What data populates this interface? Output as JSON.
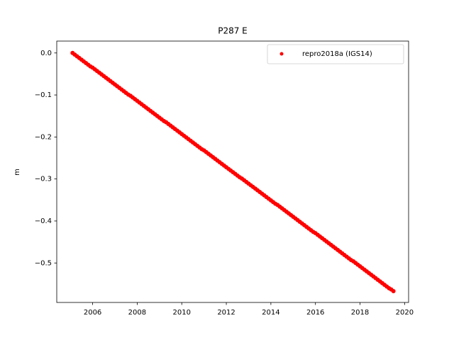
{
  "chart_data": {
    "type": "scatter",
    "title": "P287 E",
    "ylabel": "m",
    "xlim": [
      2004.39,
      2020.18
    ],
    "ylim": [
      -0.594,
      0.0283
    ],
    "xticks": [
      2006,
      2008,
      2010,
      2012,
      2014,
      2016,
      2018,
      2020
    ],
    "yticks": [
      {
        "value": 0,
        "label": "0.0"
      },
      {
        "value": -0.1,
        "label": "−0.1"
      },
      {
        "value": -0.2,
        "label": "−0.2"
      },
      {
        "value": -0.3,
        "label": "−0.3"
      },
      {
        "value": -0.4,
        "label": "−0.4"
      },
      {
        "value": -0.5,
        "label": "−0.5"
      }
    ],
    "grid": false,
    "legend": "upper right",
    "series": [
      {
        "name": "repro2018a (IGS14)",
        "color": "#ff0000",
        "x": [
          2005.1,
          2005.2,
          2005.3,
          2005.4,
          2005.5,
          2005.6,
          2005.7,
          2005.8,
          2005.9,
          2006.0,
          2006.1,
          2006.2,
          2006.3,
          2006.4,
          2006.5,
          2006.6,
          2006.7,
          2006.8,
          2006.9,
          2007.0,
          2007.1,
          2007.2,
          2007.3,
          2007.4,
          2007.5,
          2007.6,
          2007.7,
          2007.8,
          2007.9,
          2008.0,
          2008.1,
          2008.2,
          2008.3,
          2008.4,
          2008.5,
          2008.6,
          2008.7,
          2008.8,
          2008.9,
          2009.0,
          2009.1,
          2009.2,
          2009.3,
          2009.4,
          2009.5,
          2009.6,
          2009.7,
          2009.8,
          2009.9,
          2010.0,
          2010.1,
          2010.2,
          2010.3,
          2010.4,
          2010.5,
          2010.6,
          2010.7,
          2010.8,
          2010.9,
          2011.0,
          2011.1,
          2011.2,
          2011.3,
          2011.4,
          2011.5,
          2011.6,
          2011.7,
          2011.8,
          2011.9,
          2012.0,
          2012.1,
          2012.2,
          2012.3,
          2012.4,
          2012.5,
          2012.6,
          2012.7,
          2012.8,
          2012.9,
          2013.0,
          2013.1,
          2013.2,
          2013.3,
          2013.4,
          2013.5,
          2013.6,
          2013.7,
          2013.8,
          2013.9,
          2014.0,
          2014.1,
          2014.2,
          2014.3,
          2014.4,
          2014.5,
          2014.6,
          2014.7,
          2014.8,
          2014.9,
          2015.0,
          2015.1,
          2015.2,
          2015.3,
          2015.4,
          2015.5,
          2015.6,
          2015.7,
          2015.8,
          2015.9,
          2016.0,
          2016.1,
          2016.2,
          2016.3,
          2016.4,
          2016.5,
          2016.6,
          2016.7,
          2016.8,
          2016.9,
          2017.0,
          2017.1,
          2017.2,
          2017.3,
          2017.4,
          2017.5,
          2017.6,
          2017.7,
          2017.8,
          2017.9,
          2018.0,
          2018.1,
          2018.2,
          2018.3,
          2018.4,
          2018.5,
          2018.6,
          2018.7,
          2018.8,
          2018.9,
          2019.0,
          2019.1,
          2019.2,
          2019.3,
          2019.4,
          2019.5
        ],
        "values": [
          0,
          -0.004,
          -0.008,
          -0.012,
          -0.016,
          -0.02,
          -0.024,
          -0.028,
          -0.032,
          -0.035,
          -0.039,
          -0.043,
          -0.047,
          -0.051,
          -0.055,
          -0.059,
          -0.063,
          -0.067,
          -0.071,
          -0.075,
          -0.079,
          -0.083,
          -0.087,
          -0.091,
          -0.095,
          -0.099,
          -0.102,
          -0.106,
          -0.11,
          -0.114,
          -0.118,
          -0.122,
          -0.126,
          -0.13,
          -0.134,
          -0.138,
          -0.142,
          -0.146,
          -0.15,
          -0.154,
          -0.158,
          -0.162,
          -0.165,
          -0.169,
          -0.173,
          -0.177,
          -0.181,
          -0.185,
          -0.189,
          -0.193,
          -0.197,
          -0.201,
          -0.205,
          -0.209,
          -0.213,
          -0.217,
          -0.221,
          -0.225,
          -0.229,
          -0.232,
          -0.236,
          -0.24,
          -0.244,
          -0.248,
          -0.252,
          -0.256,
          -0.26,
          -0.264,
          -0.268,
          -0.272,
          -0.276,
          -0.28,
          -0.284,
          -0.288,
          -0.292,
          -0.296,
          -0.299,
          -0.303,
          -0.307,
          -0.311,
          -0.315,
          -0.319,
          -0.323,
          -0.327,
          -0.331,
          -0.335,
          -0.339,
          -0.343,
          -0.347,
          -0.351,
          -0.355,
          -0.359,
          -0.362,
          -0.366,
          -0.37,
          -0.374,
          -0.378,
          -0.382,
          -0.386,
          -0.39,
          -0.394,
          -0.398,
          -0.402,
          -0.406,
          -0.41,
          -0.414,
          -0.418,
          -0.422,
          -0.426,
          -0.429,
          -0.433,
          -0.437,
          -0.441,
          -0.445,
          -0.449,
          -0.453,
          -0.457,
          -0.461,
          -0.465,
          -0.469,
          -0.473,
          -0.477,
          -0.481,
          -0.485,
          -0.489,
          -0.493,
          -0.496,
          -0.5,
          -0.504,
          -0.508,
          -0.512,
          -0.516,
          -0.52,
          -0.524,
          -0.528,
          -0.532,
          -0.536,
          -0.54,
          -0.544,
          -0.548,
          -0.552,
          -0.556,
          -0.56,
          -0.563,
          -0.567
        ]
      }
    ]
  }
}
